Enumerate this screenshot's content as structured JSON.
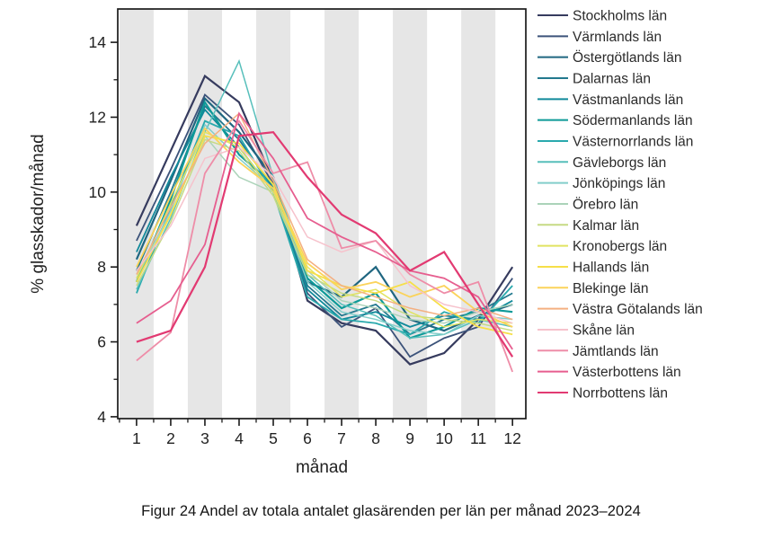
{
  "figure": {
    "caption": "Figur 24 Andel av totala antalet glasärenden per län per månad 2023–2024"
  },
  "chart_data": {
    "type": "line",
    "title": "",
    "xlabel": "månad",
    "ylabel": "% glasskador/månad",
    "x": [
      1,
      2,
      3,
      4,
      5,
      6,
      7,
      8,
      9,
      10,
      11,
      12
    ],
    "x_tick_labels": [
      "1",
      "2",
      "3",
      "4",
      "5",
      "6",
      "7",
      "8",
      "9",
      "10",
      "11",
      "12"
    ],
    "y_ticks": [
      4,
      6,
      8,
      10,
      12,
      14
    ],
    "y_minor_ticks": [
      5,
      7,
      9,
      11,
      13
    ],
    "x_minor_ticks": [
      0.5,
      1.5,
      2.5,
      3.5,
      4.5,
      5.5,
      6.5,
      7.5,
      8.5,
      9.5,
      10.5,
      11.5,
      12.5
    ],
    "xlim": [
      0.45,
      12.39
    ],
    "ylim": [
      3.95,
      14.89
    ],
    "grid": false,
    "band_months": [
      1,
      3,
      5,
      7,
      9,
      11
    ],
    "band_color": "#e6e6e6",
    "axis_color": "#1a1a1a",
    "tick_label_color": "#222222",
    "legend_text_color": "#2b2b2b",
    "legend_position": "right",
    "series": [
      {
        "name": "Stockholms län",
        "color": "#363b5e",
        "stroke_width": 2.2,
        "values": [
          9.1,
          11.1,
          13.1,
          12.4,
          10.3,
          7.1,
          6.5,
          6.3,
          5.4,
          5.7,
          6.6,
          8.0
        ]
      },
      {
        "name": "Värmlands län",
        "color": "#3c537a",
        "stroke_width": 1.8,
        "values": [
          8.7,
          10.6,
          12.6,
          11.8,
          10.2,
          7.3,
          6.4,
          6.9,
          5.6,
          6.1,
          6.4,
          7.7
        ]
      },
      {
        "name": "Östergötlands län",
        "color": "#1f6680",
        "stroke_width": 2.2,
        "values": [
          8.2,
          10.3,
          12.5,
          11.6,
          10.4,
          7.6,
          7.2,
          8.0,
          6.6,
          6.3,
          6.7,
          7.0
        ]
      },
      {
        "name": "Dalarnas län",
        "color": "#23798e",
        "stroke_width": 1.8,
        "values": [
          7.9,
          10.0,
          12.3,
          11.4,
          10.1,
          7.5,
          6.7,
          7.0,
          6.2,
          6.6,
          6.8,
          7.3
        ]
      },
      {
        "name": "Västmanlands län",
        "color": "#128a9b",
        "stroke_width": 1.8,
        "values": [
          8.4,
          10.4,
          12.2,
          11.2,
          10.0,
          7.4,
          6.6,
          6.8,
          6.4,
          6.7,
          6.6,
          7.1
        ]
      },
      {
        "name": "Södermanlands län",
        "color": "#0e9a98",
        "stroke_width": 2.2,
        "values": [
          7.6,
          9.8,
          12.4,
          11.0,
          10.2,
          7.7,
          6.9,
          7.3,
          6.1,
          6.4,
          6.9,
          6.8
        ]
      },
      {
        "name": "Västernorrlands län",
        "color": "#2aa9ad",
        "stroke_width": 1.8,
        "values": [
          7.3,
          9.6,
          11.9,
          11.5,
          10.0,
          7.2,
          6.6,
          6.5,
          6.2,
          6.8,
          6.5,
          7.5
        ]
      },
      {
        "name": "Gävleborgs län",
        "color": "#57bfbb",
        "stroke_width": 1.5,
        "values": [
          7.4,
          9.3,
          11.6,
          13.5,
          10.4,
          7.8,
          7.0,
          6.7,
          6.1,
          6.2,
          6.6,
          6.4
        ]
      },
      {
        "name": "Jönköpings län",
        "color": "#82ceca",
        "stroke_width": 1.5,
        "values": [
          7.7,
          9.5,
          11.8,
          10.9,
          10.1,
          7.6,
          6.8,
          6.6,
          6.3,
          6.2,
          6.7,
          6.6
        ]
      },
      {
        "name": "Örebro län",
        "color": "#abd3b9",
        "stroke_width": 1.5,
        "values": [
          7.8,
          9.4,
          11.5,
          10.4,
          10.0,
          7.9,
          7.1,
          6.9,
          6.6,
          6.5,
          6.8,
          7.0
        ]
      },
      {
        "name": "Kalmar län",
        "color": "#c6da84",
        "stroke_width": 1.5,
        "values": [
          7.5,
          9.2,
          11.4,
          11.1,
          9.9,
          7.8,
          7.3,
          7.1,
          6.7,
          6.6,
          6.5,
          6.3
        ]
      },
      {
        "name": "Kronobergs län",
        "color": "#e1e362",
        "stroke_width": 1.5,
        "values": [
          7.7,
          9.7,
          11.6,
          11.2,
          10.0,
          8.0,
          7.2,
          7.4,
          6.8,
          6.4,
          6.6,
          6.5
        ]
      },
      {
        "name": "Hallands län",
        "color": "#f6df49",
        "stroke_width": 1.8,
        "values": [
          7.6,
          9.4,
          11.5,
          11.3,
          10.2,
          7.9,
          7.5,
          7.3,
          7.6,
          6.9,
          6.4,
          6.2
        ]
      },
      {
        "name": "Blekinge län",
        "color": "#fbd35a",
        "stroke_width": 1.8,
        "values": [
          8.0,
          9.9,
          11.7,
          10.8,
          10.1,
          8.1,
          7.4,
          7.6,
          7.2,
          7.5,
          6.8,
          6.4
        ]
      },
      {
        "name": "Västra Götalands län",
        "color": "#f4b081",
        "stroke_width": 1.5,
        "values": [
          7.8,
          9.6,
          11.3,
          12.1,
          10.3,
          8.2,
          7.5,
          7.2,
          6.9,
          6.7,
          6.9,
          6.6
        ]
      },
      {
        "name": "Skåne län",
        "color": "#f6c2cc",
        "stroke_width": 1.5,
        "values": [
          7.9,
          9.1,
          10.9,
          11.2,
          10.4,
          8.8,
          8.4,
          8.7,
          7.5,
          7.0,
          6.8,
          6.5
        ]
      },
      {
        "name": "Jämtlands län",
        "color": "#ee8da8",
        "stroke_width": 1.8,
        "values": [
          5.5,
          6.25,
          10.5,
          11.9,
          10.5,
          10.8,
          8.5,
          8.7,
          7.8,
          7.3,
          7.6,
          5.2
        ]
      },
      {
        "name": "Västerbottens län",
        "color": "#e65e8f",
        "stroke_width": 1.8,
        "values": [
          6.5,
          7.1,
          8.6,
          12.1,
          10.9,
          9.3,
          8.8,
          8.4,
          7.9,
          7.7,
          7.2,
          5.8
        ]
      },
      {
        "name": "Norrbottens län",
        "color": "#e23a72",
        "stroke_width": 2.2,
        "values": [
          6.0,
          6.3,
          8.0,
          11.5,
          11.6,
          10.4,
          9.4,
          8.9,
          7.9,
          8.4,
          7.0,
          5.6
        ]
      }
    ]
  }
}
